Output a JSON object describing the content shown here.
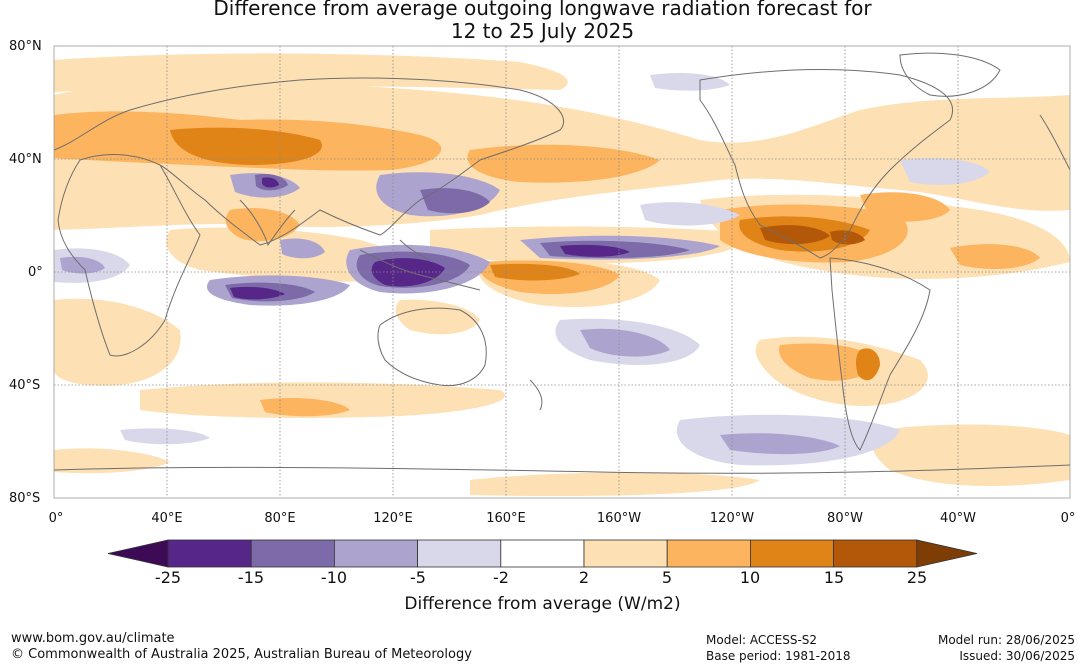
{
  "title_line1": "Difference from average outgoing longwave radiation forecast for",
  "title_line2": "12 to 25 July 2025",
  "lat_labels": [
    "80°N",
    "40°N",
    "0°",
    "40°S",
    "80°S"
  ],
  "lon_labels": [
    "0°",
    "40°E",
    "80°E",
    "120°E",
    "160°E",
    "160°W",
    "120°W",
    "80°W",
    "40°W",
    "0°"
  ],
  "colorbar": {
    "labels": [
      "-25",
      "-15",
      "-10",
      "-5",
      "-2",
      "2",
      "5",
      "10",
      "15",
      "25"
    ],
    "colors": [
      "#3d0b55",
      "#562689",
      "#7d6aa8",
      "#aca4cf",
      "#d9d8ea",
      "#ffffff",
      "#fde0b3",
      "#fdb45e",
      "#e08418",
      "#b35809",
      "#7f3d06"
    ],
    "title": "Difference from average (W/m2)"
  },
  "footer": {
    "url": "www.bom.gov.au/climate",
    "copyright": "© Commonwealth of Australia 2025, Australian Bureau of Meteorology",
    "model": "Model: ACCESS-S2",
    "base_period": "Base period: 1981-2018",
    "model_run": "Model run: 28/06/2025",
    "issued": "Issued: 30/06/2025"
  }
}
